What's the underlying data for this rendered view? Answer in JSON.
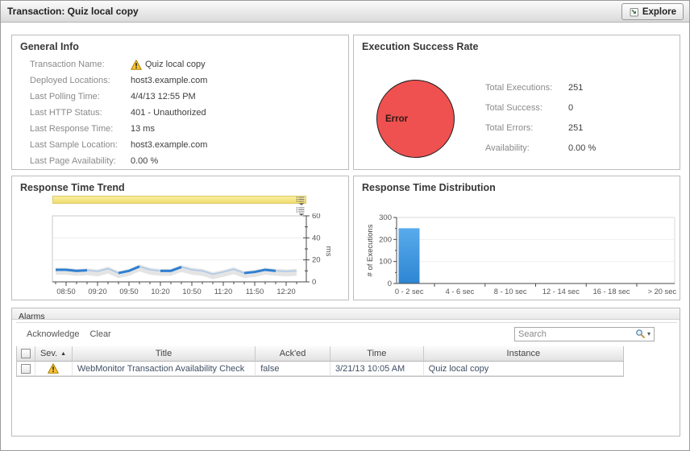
{
  "header": {
    "title": "Transaction: Quiz local copy",
    "explore": "Explore"
  },
  "general_info": {
    "title": "General Info",
    "rows": [
      {
        "label": "Transaction Name:",
        "value": "Quiz local copy",
        "warning": true
      },
      {
        "label": "Deployed Locations:",
        "value": "host3.example.com",
        "warning": false
      },
      {
        "label": "Last Polling Time:",
        "value": "4/4/13 12:55 PM",
        "warning": false
      },
      {
        "label": "Last HTTP Status:",
        "value": "401 - Unauthorized",
        "warning": false
      },
      {
        "label": "Last Response Time:",
        "value": "13 ms",
        "warning": false
      },
      {
        "label": "Last Sample Location:",
        "value": "host3.example.com",
        "warning": false
      },
      {
        "label": "Last Page Availability:",
        "value": "0.00 %",
        "warning": false
      }
    ]
  },
  "execution_success": {
    "title": "Execution Success Rate",
    "pie_label": "Error",
    "stats": [
      {
        "label": "Total Executions:",
        "value": "251"
      },
      {
        "label": "Total Success:",
        "value": "0"
      },
      {
        "label": "Total Errors:",
        "value": "251"
      },
      {
        "label": "Availability:",
        "value": "0.00 %"
      }
    ]
  },
  "chart_data": [
    {
      "id": "response_time_trend",
      "type": "line",
      "title": "Response Time Trend",
      "x": [
        "08:40",
        "08:50",
        "09:00",
        "09:10",
        "09:20",
        "09:30",
        "09:40",
        "09:50",
        "10:00",
        "10:10",
        "10:20",
        "10:30",
        "10:40",
        "10:50",
        "11:00",
        "11:10",
        "11:20",
        "11:30",
        "11:40",
        "11:50",
        "12:00",
        "12:10",
        "12:20",
        "12:30"
      ],
      "y": [
        11,
        11,
        10,
        10.5,
        9.5,
        12,
        8,
        10,
        14,
        11,
        10,
        10,
        13.5,
        11,
        10,
        7,
        9,
        11.5,
        8,
        9,
        11,
        10,
        9.5,
        10
      ],
      "x_tick_labels": [
        "08:50",
        "09:20",
        "09:50",
        "10:20",
        "10:50",
        "11:20",
        "11:50",
        "12:20"
      ],
      "ylabel": "ms",
      "ylim": [
        0,
        60
      ],
      "yticks": [
        0,
        20,
        40,
        60
      ],
      "bold_segments": [
        [
          0,
          3
        ],
        [
          6,
          8
        ],
        [
          10,
          12
        ],
        [
          18,
          21
        ]
      ],
      "line_color": "#a9c7e9",
      "bold_color": "#2f7fd1",
      "band_color": "#e4e4e4",
      "grid": true
    },
    {
      "id": "response_time_distribution",
      "type": "bar",
      "title": "Response Time Distribution",
      "categories": [
        "0 - 2 sec",
        "2 - 4 sec",
        "4 - 6 sec",
        "6 - 8 sec",
        "8 - 10 sec",
        "10 - 12 sec",
        "12 - 14 sec",
        "14 - 16 sec",
        "16 - 18 sec",
        "18 - 20 sec",
        "> 20 sec"
      ],
      "values": [
        251,
        0,
        0,
        0,
        0,
        0,
        0,
        0,
        0,
        0,
        0
      ],
      "labeled_categories": [
        "0 - 2 sec",
        "4 - 6 sec",
        "8 - 10 sec",
        "12 - 14 sec",
        "16 - 18 sec",
        "> 20 sec"
      ],
      "ylabel": "# of Executions",
      "ylim": [
        0,
        300
      ],
      "yticks": [
        0,
        100,
        200,
        300
      ],
      "bar_color_top": "#58abec",
      "bar_color_bottom": "#2e86d2",
      "grid": true
    },
    {
      "id": "execution_success_rate",
      "type": "pie",
      "title": "Execution Success Rate",
      "slices": [
        {
          "label": "Error",
          "value": 251,
          "color": "#ef5150"
        }
      ]
    }
  ],
  "alarms": {
    "title": "Alarms",
    "actions": [
      "Acknowledge",
      "Clear"
    ],
    "search_placeholder": "Search",
    "columns": [
      "Sev.",
      "Title",
      "Ack'ed",
      "Time",
      "Instance"
    ],
    "sorted_column": "Sev.",
    "rows": [
      {
        "severity": "warning",
        "title": "WebMonitor Transaction Availability Check",
        "acked": "false",
        "time": "3/21/13 10:05 AM",
        "instance": "Quiz local copy"
      }
    ]
  },
  "icons": {
    "sort_asc": "▲",
    "dropdown": "▾"
  }
}
